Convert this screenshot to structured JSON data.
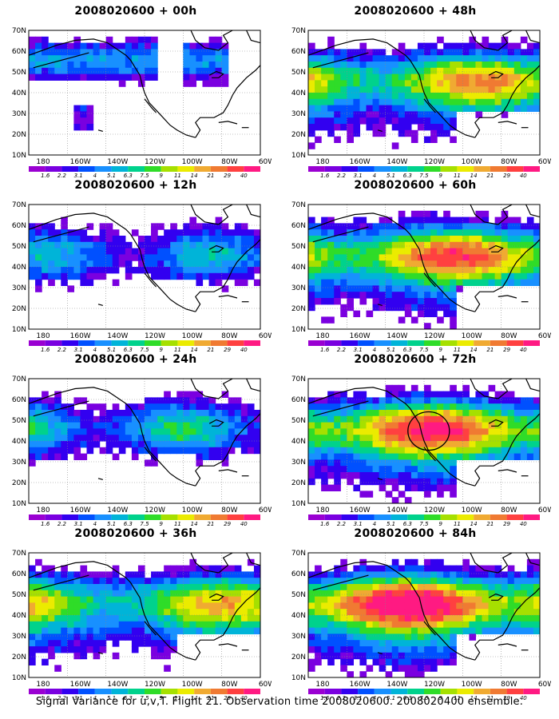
{
  "panels": [
    {
      "title": "2008020600 + 00h",
      "col": 0,
      "row": 0,
      "intensity": 0.35,
      "region": "north"
    },
    {
      "title": "2008020600 + 12h",
      "col": 0,
      "row": 1,
      "intensity": 0.45,
      "region": "band"
    },
    {
      "title": "2008020600 + 24h",
      "col": 0,
      "row": 2,
      "intensity": 0.55,
      "region": "band"
    },
    {
      "title": "2008020600 + 36h",
      "col": 0,
      "row": 3,
      "intensity": 0.65,
      "region": "wide"
    },
    {
      "title": "2008020600 + 48h",
      "col": 1,
      "row": 0,
      "intensity": 0.7,
      "region": "wide"
    },
    {
      "title": "2008020600 + 60h",
      "col": 1,
      "row": 1,
      "intensity": 0.8,
      "region": "wide"
    },
    {
      "title": "2008020600 + 72h",
      "col": 1,
      "row": 2,
      "intensity": 0.85,
      "region": "wide",
      "circle": true
    },
    {
      "title": "2008020600 + 84h",
      "col": 1,
      "row": 3,
      "intensity": 0.95,
      "region": "wide"
    }
  ],
  "lat_labels": [
    "70N",
    "60N",
    "50N",
    "40N",
    "30N",
    "20N",
    "10N"
  ],
  "lon_labels": [
    "180",
    "160W",
    "140W",
    "120W",
    "100W",
    "80W",
    "60W"
  ],
  "colorbar": {
    "labels": [
      "1.6",
      "2.2",
      "3.1",
      "4",
      "5.1",
      "6.3",
      "7.5",
      "9",
      "11",
      "14",
      "21",
      "29",
      "40"
    ],
    "colors": [
      "#9a00d2",
      "#7a00e0",
      "#3200f0",
      "#0050ff",
      "#1890ff",
      "#00b4d8",
      "#00d28c",
      "#2fdc28",
      "#a6e000",
      "#ebeb00",
      "#f0aa32",
      "#f07a32",
      "#ff4040",
      "#ff1a82"
    ]
  },
  "footer": "Signal Variance for u,v,T. Flight 21. Observation time 2008020600. 2008020400 ensemble."
}
